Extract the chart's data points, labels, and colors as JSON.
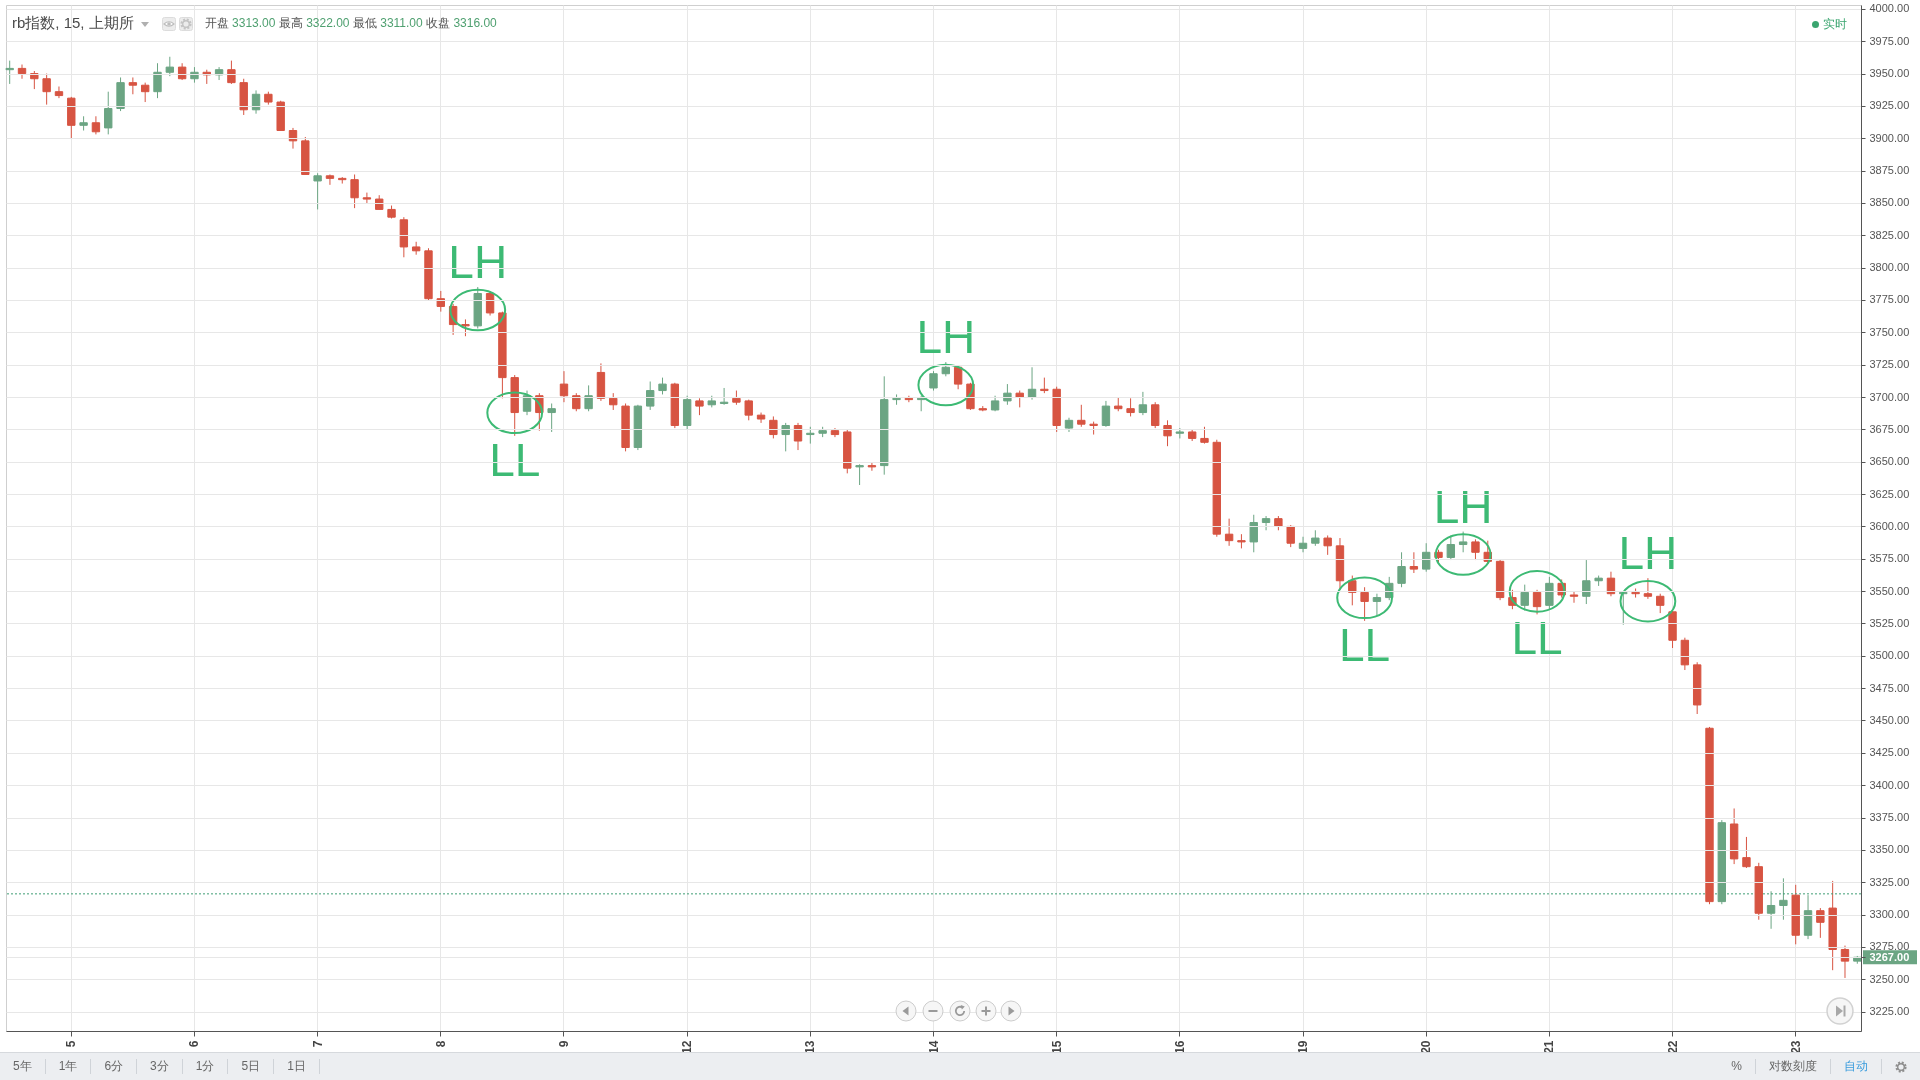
{
  "chart_data": [
    {
      "type": "candlestick",
      "title": "rb指数, 15, 上期所",
      "subtitle": "开盘 3313.00 最高 3322.00 最低 3311.00 收盘 3316.00",
      "categories": [
        null,
        null,
        null,
        null,
        null,
        "5",
        null,
        null,
        null,
        null,
        null,
        null,
        null,
        null,
        null,
        "6",
        null,
        null,
        null,
        null,
        null,
        null,
        null,
        null,
        null,
        "7",
        null,
        null,
        null,
        null,
        null,
        null,
        null,
        null,
        null,
        "8",
        null,
        null,
        null,
        null,
        null,
        null,
        null,
        null,
        null,
        "9",
        null,
        null,
        null,
        null,
        null,
        null,
        null,
        null,
        null,
        "12",
        null,
        null,
        null,
        null,
        null,
        null,
        null,
        null,
        null,
        "13",
        null,
        null,
        null,
        null,
        null,
        null,
        null,
        null,
        null,
        "14",
        null,
        null,
        null,
        null,
        null,
        null,
        null,
        null,
        null,
        "15",
        null,
        null,
        null,
        null,
        null,
        null,
        null,
        null,
        null,
        "16",
        null,
        null,
        null,
        null,
        null,
        null,
        null,
        null,
        null,
        "19",
        null,
        null,
        null,
        null,
        null,
        null,
        null,
        null,
        null,
        "20",
        null,
        null,
        null,
        null,
        null,
        null,
        null,
        null,
        null,
        "21",
        null,
        null,
        null,
        null,
        null,
        null,
        null,
        null,
        null,
        "22",
        null,
        null,
        null,
        null,
        null,
        null,
        null,
        null,
        null,
        "23",
        null,
        null,
        null,
        null,
        null
      ],
      "ohlc": [
        [
          3953,
          3960,
          3942,
          3954
        ],
        [
          3954,
          3957,
          3946,
          3950
        ],
        [
          3950,
          3952,
          3938,
          3946
        ],
        [
          3946,
          3950,
          3926,
          3936
        ],
        [
          3936,
          3940,
          3931,
          3933
        ],
        [
          3931,
          3932,
          3900,
          3910
        ],
        [
          3910,
          3917,
          3906,
          3912
        ],
        [
          3912,
          3917,
          3903,
          3905
        ],
        [
          3908,
          3936,
          3903,
          3923
        ],
        [
          3923,
          3947,
          3921,
          3943
        ],
        [
          3943,
          3947,
          3934,
          3941
        ],
        [
          3941,
          3943,
          3928,
          3936
        ],
        [
          3936,
          3958,
          3931,
          3951
        ],
        [
          3951,
          3963,
          3948,
          3955
        ],
        [
          3955,
          3958,
          3945,
          3946
        ],
        [
          3946,
          3955,
          3943,
          3951
        ],
        [
          3951,
          3953,
          3942,
          3949
        ],
        [
          3949,
          3955,
          3945,
          3953
        ],
        [
          3953,
          3960,
          3942,
          3943
        ],
        [
          3943,
          3946,
          3918,
          3922
        ],
        [
          3922,
          3937,
          3919,
          3934
        ],
        [
          3934,
          3936,
          3926,
          3928
        ],
        [
          3928,
          3929,
          3906,
          3906
        ],
        [
          3906,
          3908,
          3892,
          3898
        ],
        [
          3898,
          3901,
          3872,
          3872
        ],
        [
          3867,
          3873,
          3845,
          3871
        ],
        [
          3871,
          3872,
          3864,
          3869
        ],
        [
          3869,
          3870,
          3865,
          3868
        ],
        [
          3868,
          3872,
          3846,
          3854
        ],
        [
          3854,
          3858,
          3850,
          3853
        ],
        [
          3853,
          3856,
          3845,
          3845
        ],
        [
          3845,
          3848,
          3838,
          3839
        ],
        [
          3837,
          3839,
          3808,
          3816
        ],
        [
          3816,
          3820,
          3810,
          3813
        ],
        [
          3813,
          3815,
          3775,
          3776
        ],
        [
          3776,
          3782,
          3766,
          3770
        ],
        [
          3770,
          3772,
          3748,
          3756
        ],
        [
          3756,
          3760,
          3747,
          3755
        ],
        [
          3755,
          3785,
          3753,
          3780
        ],
        [
          3780,
          3782,
          3763,
          3765
        ],
        [
          3765,
          3766,
          3699,
          3715
        ],
        [
          3715,
          3717,
          3670,
          3688
        ],
        [
          3689,
          3705,
          3686,
          3701
        ],
        [
          3701,
          3703,
          3674,
          3688
        ],
        [
          3688,
          3695,
          3673,
          3691
        ],
        [
          3710,
          3720,
          3696,
          3701
        ],
        [
          3701,
          3703,
          3689,
          3691
        ],
        [
          3691,
          3709,
          3689,
          3701
        ],
        [
          3719,
          3726,
          3697,
          3699
        ],
        [
          3699,
          3703,
          3690,
          3694
        ],
        [
          3693,
          3695,
          3658,
          3661
        ],
        [
          3661,
          3694,
          3659,
          3693
        ],
        [
          3693,
          3712,
          3690,
          3705
        ],
        [
          3705,
          3715,
          3702,
          3710
        ],
        [
          3710,
          3711,
          3676,
          3678
        ],
        [
          3678,
          3701,
          3675,
          3698
        ],
        [
          3697,
          3699,
          3686,
          3693
        ],
        [
          3694,
          3701,
          3692,
          3697
        ],
        [
          3695,
          3707,
          3694,
          3696
        ],
        [
          3699,
          3705,
          3694,
          3696
        ],
        [
          3697,
          3698,
          3682,
          3686
        ],
        [
          3686,
          3688,
          3680,
          3683
        ],
        [
          3682,
          3685,
          3668,
          3671
        ],
        [
          3671,
          3680,
          3658,
          3678
        ],
        [
          3678,
          3680,
          3659,
          3666
        ],
        [
          3671,
          3677,
          3664,
          3672
        ],
        [
          3672,
          3677,
          3669,
          3674
        ],
        [
          3674,
          3676,
          3669,
          3671
        ],
        [
          3673,
          3675,
          3641,
          3645
        ],
        [
          3646,
          3648,
          3632,
          3647
        ],
        [
          3647,
          3649,
          3643,
          3646
        ],
        [
          3647,
          3716,
          3640,
          3698
        ],
        [
          3698,
          3702,
          3694,
          3699
        ],
        [
          3699,
          3701,
          3696,
          3698
        ],
        [
          3698,
          3701,
          3689,
          3699
        ],
        [
          3707,
          3720,
          3705,
          3718
        ],
        [
          3718,
          3727,
          3716,
          3723
        ],
        [
          3723,
          3724,
          3706,
          3710
        ],
        [
          3710,
          3711,
          3690,
          3691
        ],
        [
          3691,
          3693,
          3689,
          3690
        ],
        [
          3690,
          3701,
          3689,
          3697
        ],
        [
          3697,
          3710,
          3694,
          3703
        ],
        [
          3703,
          3705,
          3692,
          3700
        ],
        [
          3700,
          3723,
          3698,
          3706
        ],
        [
          3706,
          3715,
          3703,
          3705
        ],
        [
          3706,
          3708,
          3673,
          3678
        ],
        [
          3676,
          3684,
          3673,
          3682
        ],
        [
          3682,
          3694,
          3677,
          3679
        ],
        [
          3679,
          3681,
          3671,
          3678
        ],
        [
          3678,
          3697,
          3677,
          3693
        ],
        [
          3693,
          3700,
          3689,
          3691
        ],
        [
          3691,
          3699,
          3685,
          3688
        ],
        [
          3688,
          3704,
          3686,
          3694
        ],
        [
          3694,
          3696,
          3676,
          3678
        ],
        [
          3678,
          3682,
          3662,
          3670
        ],
        [
          3672,
          3676,
          3668,
          3673
        ],
        [
          3673,
          3675,
          3666,
          3668
        ],
        [
          3668,
          3677,
          3664,
          3665
        ],
        [
          3665,
          3667,
          3592,
          3594
        ],
        [
          3594,
          3606,
          3585,
          3589
        ],
        [
          3589,
          3594,
          3583,
          3588
        ],
        [
          3588,
          3609,
          3580,
          3603
        ],
        [
          3603,
          3608,
          3597,
          3606
        ],
        [
          3606,
          3608,
          3597,
          3600
        ],
        [
          3600,
          3601,
          3584,
          3587
        ],
        [
          3583,
          3592,
          3580,
          3587
        ],
        [
          3587,
          3597,
          3585,
          3591
        ],
        [
          3591,
          3593,
          3578,
          3585
        ],
        [
          3585,
          3591,
          3551,
          3558
        ],
        [
          3558,
          3562,
          3539,
          3549
        ],
        [
          3549,
          3553,
          3527,
          3542
        ],
        [
          3542,
          3548,
          3531,
          3545
        ],
        [
          3545,
          3561,
          3543,
          3556
        ],
        [
          3556,
          3580,
          3553,
          3569
        ],
        [
          3569,
          3580,
          3564,
          3567
        ],
        [
          3567,
          3587,
          3565,
          3580
        ],
        [
          3580,
          3582,
          3572,
          3576
        ],
        [
          3576,
          3593,
          3574,
          3586
        ],
        [
          3586,
          3596,
          3580,
          3588
        ],
        [
          3588,
          3590,
          3574,
          3580
        ],
        [
          3580,
          3589,
          3571,
          3573
        ],
        [
          3573,
          3574,
          3543,
          3545
        ],
        [
          3545,
          3551,
          3536,
          3539
        ],
        [
          3539,
          3555,
          3535,
          3549
        ],
        [
          3549,
          3551,
          3532,
          3538
        ],
        [
          3539,
          3561,
          3536,
          3556
        ],
        [
          3556,
          3559,
          3545,
          3547
        ],
        [
          3547,
          3550,
          3541,
          3546
        ],
        [
          3546,
          3574,
          3540,
          3558
        ],
        [
          3558,
          3562,
          3554,
          3560
        ],
        [
          3560,
          3565,
          3546,
          3548
        ],
        [
          3548,
          3550,
          3524,
          3549
        ],
        [
          3549,
          3552,
          3545,
          3548
        ],
        [
          3548,
          3560,
          3544,
          3546
        ],
        [
          3546,
          3548,
          3533,
          3539
        ],
        [
          3534,
          3535,
          3506,
          3512
        ],
        [
          3512,
          3514,
          3489,
          3493
        ],
        [
          3493,
          3495,
          3455,
          3462
        ],
        [
          3444,
          3445,
          3308,
          3310
        ],
        [
          3310,
          3373,
          3308,
          3371
        ],
        [
          3370,
          3382,
          3339,
          3343
        ],
        [
          3344,
          3360,
          3336,
          3337
        ],
        [
          3337,
          3340,
          3296,
          3301
        ],
        [
          3301,
          3318,
          3289,
          3307
        ],
        [
          3307,
          3328,
          3296,
          3311
        ],
        [
          3315,
          3323,
          3277,
          3284
        ],
        [
          3284,
          3315,
          3281,
          3303
        ],
        [
          3303,
          3305,
          3282,
          3294
        ],
        [
          3305,
          3326,
          3257,
          3273
        ],
        [
          3273,
          3276,
          3251,
          3264
        ],
        [
          3264,
          3268,
          3262,
          3267
        ]
      ],
      "colors": [
        "#6ba583",
        "#d75442",
        "#d75442",
        "#d75442",
        "#d75442",
        "#d75442",
        "#6ba583",
        "#d75442",
        "#6ba583",
        "#6ba583",
        "#d75442",
        "#d75442",
        "#6ba583",
        "#6ba583",
        "#d75442",
        "#6ba583",
        "#d75442",
        "#6ba583",
        "#d75442",
        "#d75442",
        "#6ba583",
        "#d75442",
        "#d75442",
        "#d75442",
        "#d75442",
        "#6ba583",
        "#d75442",
        "#d75442",
        "#d75442",
        "#d75442",
        "#d75442",
        "#d75442",
        "#d75442",
        "#d75442",
        "#d75442",
        "#d75442",
        "#d75442",
        "#d75442",
        "#6ba583",
        "#d75442",
        "#d75442",
        "#d75442",
        "#6ba583",
        "#d75442",
        "#6ba583",
        "#d75442",
        "#d75442",
        "#6ba583",
        "#d75442",
        "#d75442",
        "#d75442",
        "#6ba583",
        "#6ba583",
        "#6ba583",
        "#d75442",
        "#6ba583",
        "#d75442",
        "#6ba583",
        "#6ba583",
        "#d75442",
        "#d75442",
        "#d75442",
        "#d75442",
        "#6ba583",
        "#d75442",
        "#6ba583",
        "#6ba583",
        "#d75442",
        "#d75442",
        "#6ba583",
        "#d75442",
        "#6ba583",
        "#6ba583",
        "#d75442",
        "#6ba583",
        "#6ba583",
        "#6ba583",
        "#d75442",
        "#d75442",
        "#d75442",
        "#6ba583",
        "#6ba583",
        "#d75442",
        "#6ba583",
        "#d75442",
        "#d75442",
        "#6ba583",
        "#d75442",
        "#d75442",
        "#6ba583",
        "#d75442",
        "#d75442",
        "#6ba583",
        "#d75442",
        "#d75442",
        "#6ba583",
        "#d75442",
        "#d75442",
        "#d75442",
        "#d75442",
        "#d75442",
        "#6ba583",
        "#6ba583",
        "#d75442",
        "#d75442",
        "#6ba583",
        "#6ba583",
        "#d75442",
        "#d75442",
        "#d75442",
        "#d75442",
        "#6ba583",
        "#6ba583",
        "#6ba583",
        "#d75442",
        "#6ba583",
        "#d75442",
        "#6ba583",
        "#6ba583",
        "#d75442",
        "#d75442",
        "#d75442",
        "#d75442",
        "#6ba583",
        "#d75442",
        "#6ba583",
        "#d75442",
        "#d75442",
        "#6ba583",
        "#6ba583",
        "#d75442",
        "#6ba583",
        "#d75442",
        "#d75442",
        "#d75442",
        "#d75442",
        "#d75442",
        "#d75442",
        "#d75442",
        "#6ba583",
        "#d75442",
        "#d75442",
        "#d75442",
        "#6ba583",
        "#6ba583",
        "#d75442",
        "#6ba583",
        "#d75442",
        "#d75442",
        "#d75442",
        "#6ba583"
      ],
      "ylim": [
        3210,
        4003
      ],
      "yticks": [
        {
          "value": 3225,
          "label": "3225.00"
        },
        {
          "value": 3250,
          "label": "3250.00"
        },
        {
          "value": 3267,
          "label": "3267.00"
        },
        {
          "value": 3275,
          "label": "3275.00"
        },
        {
          "value": 3300,
          "label": "3300.00"
        },
        {
          "value": 3325,
          "label": "3325.00"
        },
        {
          "value": 3350,
          "label": "3350.00"
        },
        {
          "value": 3375,
          "label": "3375.00"
        },
        {
          "value": 3400,
          "label": "3400.00"
        },
        {
          "value": 3425,
          "label": "3425.00"
        },
        {
          "value": 3450,
          "label": "3450.00"
        },
        {
          "value": 3475,
          "label": "3475.00"
        },
        {
          "value": 3500,
          "label": "3500.00"
        },
        {
          "value": 3525,
          "label": "3525.00"
        },
        {
          "value": 3550,
          "label": "3550.00"
        },
        {
          "value": 3575,
          "label": "3575.00"
        },
        {
          "value": 3600,
          "label": "3600.00"
        },
        {
          "value": 3625,
          "label": "3625.00"
        },
        {
          "value": 3650,
          "label": "3650.00"
        },
        {
          "value": 3675,
          "label": "3675.00"
        },
        {
          "value": 3700,
          "label": "3700.00"
        },
        {
          "value": 3725,
          "label": "3725.00"
        },
        {
          "value": 3750,
          "label": "3750.00"
        },
        {
          "value": 3775,
          "label": "3775.00"
        },
        {
          "value": 3800,
          "label": "3800.00"
        },
        {
          "value": 3825,
          "label": "3825.00"
        },
        {
          "value": 3850,
          "label": "3850.00"
        },
        {
          "value": 3875,
          "label": "3875.00"
        },
        {
          "value": 3900,
          "label": "3900.00"
        },
        {
          "value": 3925,
          "label": "3925.00"
        },
        {
          "value": 3950,
          "label": "3950.00"
        },
        {
          "value": 3975,
          "label": "3975.00"
        },
        {
          "value": 4000,
          "label": "4000.00"
        }
      ],
      "grid": true,
      "ref_lines": [
        {
          "axis": "y",
          "value": 3316,
          "color": "#3f9e74",
          "line_style": "dotted"
        }
      ],
      "annotations": [
        {
          "text": "LH",
          "y": 3785
        },
        {
          "text": "LL",
          "y": 3670
        },
        {
          "text": "LH",
          "y": 3727
        },
        {
          "text": "LL",
          "y": 3527
        },
        {
          "text": "LH",
          "y": 3596
        },
        {
          "text": "LL",
          "y": 3532
        },
        {
          "text": "LH",
          "y": 3560
        },
        "实时"
      ]
    },
    {
      "type": "other",
      "annotations": [
        "5年",
        "1年",
        "6分",
        "3分",
        "1分",
        "5日",
        "1日"
      ]
    },
    {
      "type": "other",
      "annotations": [
        "%",
        "对数刻度",
        "自动"
      ]
    }
  ]
}
